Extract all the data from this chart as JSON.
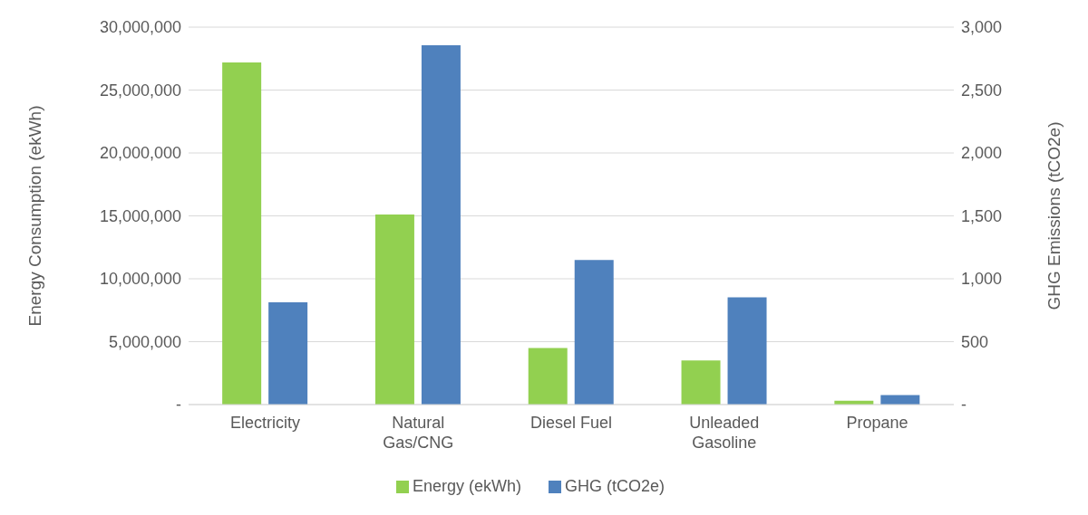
{
  "chart_data": {
    "type": "bar",
    "categories": [
      "Electricity",
      "Natural Gas/CNG",
      "Diesel Fuel",
      "Unleaded Gasoline",
      "Propane"
    ],
    "series": [
      {
        "name": "Energy (ekWh)",
        "color": "#92d050",
        "values": [
          27200000,
          15100000,
          4500000,
          3500000,
          300000
        ]
      },
      {
        "name": "GHG (tCO2e)",
        "color": "#4f81bd",
        "axis": "y2",
        "values": [
          813,
          2856,
          1150,
          853,
          76
        ]
      }
    ],
    "ylabel": "Energy Consumption (ekWh)",
    "y2label": "GHG Emissions (tCO2e)",
    "ylim": [
      0,
      30000000
    ],
    "yticks": [
      {
        "value": 0,
        "label": "-"
      },
      {
        "value": 5000000,
        "label": "5,000,000"
      },
      {
        "value": 10000000,
        "label": "10,000,000"
      },
      {
        "value": 15000000,
        "label": "15,000,000"
      },
      {
        "value": 20000000,
        "label": "20,000,000"
      },
      {
        "value": 25000000,
        "label": "25,000,000"
      },
      {
        "value": 30000000,
        "label": "30,000,000"
      }
    ],
    "y2lim": [
      0,
      3000
    ],
    "y2ticks": [
      {
        "value": 0,
        "label": "-"
      },
      500,
      {
        "value": 1000,
        "label": "1,000"
      },
      {
        "value": 1500,
        "label": "1,500"
      },
      {
        "value": 2000,
        "label": "2,000"
      },
      {
        "value": 2500,
        "label": "2,500"
      },
      {
        "value": 3000,
        "label": "3,000"
      }
    ],
    "grid": "y",
    "legend": "bottom"
  }
}
